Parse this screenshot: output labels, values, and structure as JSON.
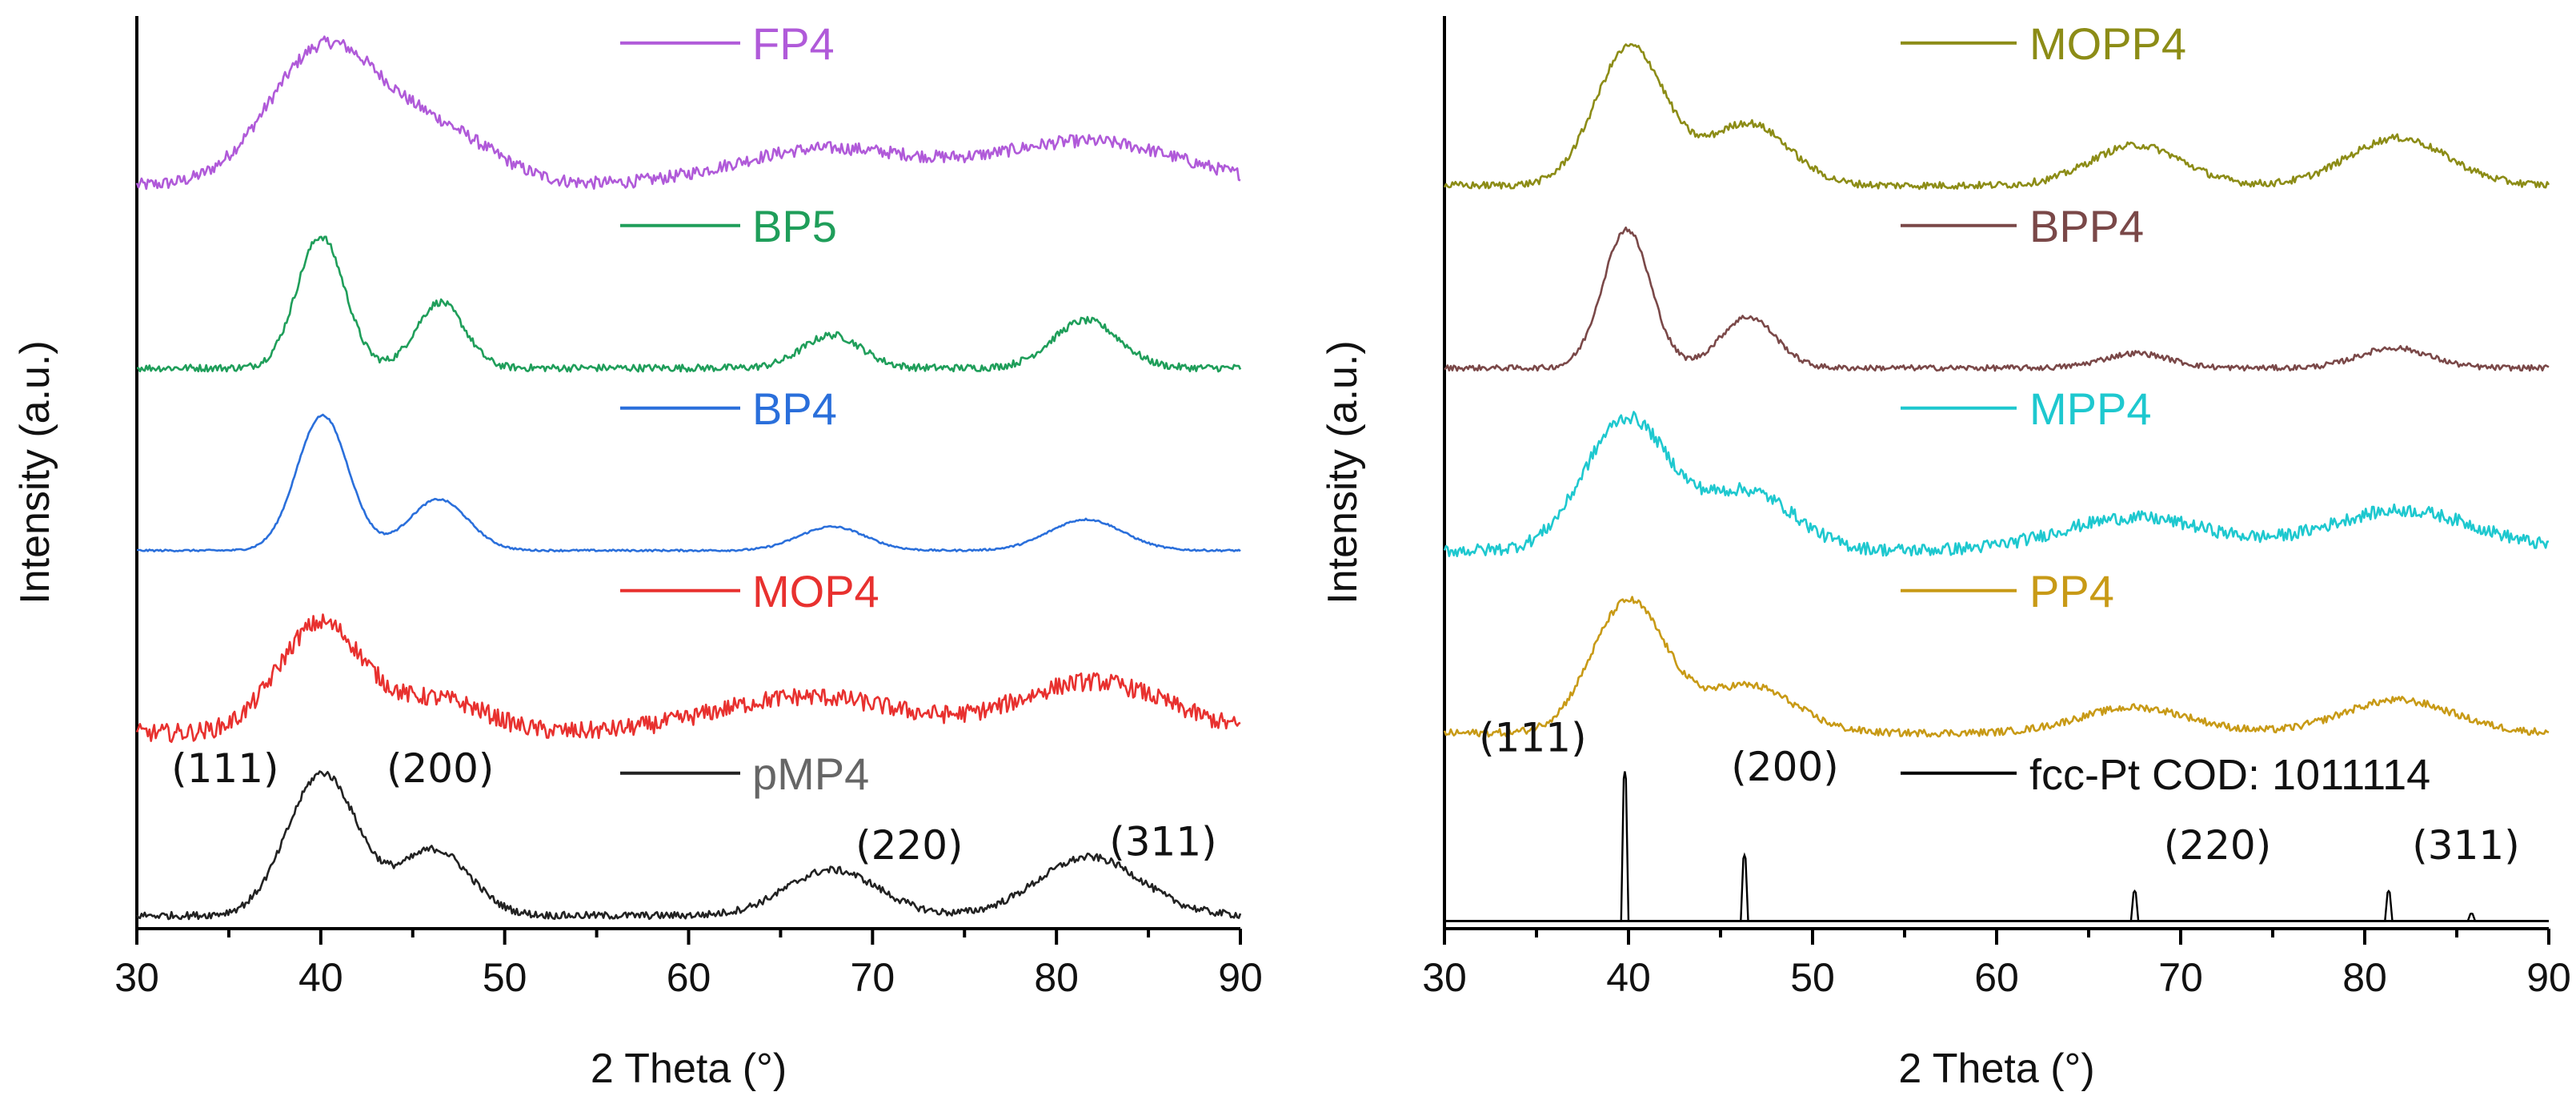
{
  "chart_data": [
    {
      "type": "line",
      "xlabel": "2 Theta (°)",
      "ylabel": "Intensity (a.u.)",
      "xlim": [
        30,
        90
      ],
      "xticks": [
        "30",
        "40",
        "50",
        "60",
        "70",
        "80",
        "90"
      ],
      "series": [
        {
          "name": "FP4",
          "color": "#b05ad9",
          "offset": 4.0,
          "noise": 0.035,
          "peaks": [
            [
              40.2,
              0.75,
              3.0
            ],
            [
              46.5,
              0.28,
              3.0
            ],
            [
              67.5,
              0.2,
              5.0
            ],
            [
              81.8,
              0.24,
              5.0
            ]
          ]
        },
        {
          "name": "BP5",
          "color": "#1f9e5a",
          "offset": 3.0,
          "noise": 0.02,
          "peaks": [
            [
              40.0,
              0.72,
              1.3
            ],
            [
              46.5,
              0.36,
              1.3
            ],
            [
              67.8,
              0.18,
              1.6
            ],
            [
              81.6,
              0.26,
              1.8
            ]
          ]
        },
        {
          "name": "BP4",
          "color": "#2a6fdb",
          "offset": 2.0,
          "noise": 0.005,
          "peaks": [
            [
              40.1,
              0.74,
              1.4
            ],
            [
              46.4,
              0.28,
              1.6
            ],
            [
              67.8,
              0.13,
              1.8
            ],
            [
              81.6,
              0.17,
              2.0
            ]
          ]
        },
        {
          "name": "MOP4",
          "color": "#e8312f",
          "offset": 1.0,
          "noise": 0.05,
          "peaks": [
            [
              40.0,
              0.6,
              2.3
            ],
            [
              46.5,
              0.18,
              2.5
            ],
            [
              66.5,
              0.2,
              5.0
            ],
            [
              82.0,
              0.28,
              4.0
            ]
          ]
        },
        {
          "name": "pMP4",
          "color": "#222222",
          "offset": 0.0,
          "noise": 0.02,
          "peaks": [
            [
              40.1,
              0.78,
              1.9
            ],
            [
              46.2,
              0.36,
              1.9
            ],
            [
              67.8,
              0.25,
              2.5
            ],
            [
              81.8,
              0.32,
              2.8
            ]
          ]
        }
      ],
      "peak_labels": [
        {
          "text": "(111)",
          "x": 34.8,
          "y": 0.78
        },
        {
          "text": "(200)",
          "x": 46.5,
          "y": 0.78
        },
        {
          "text": "(220)",
          "x": 72.0,
          "y": 0.36
        },
        {
          "text": "(311)",
          "x": 85.8,
          "y": 0.38
        }
      ]
    },
    {
      "type": "line",
      "xlabel": "2 Theta (°)",
      "ylabel": "Intensity (a.u.)",
      "xlim": [
        30,
        90
      ],
      "xticks": [
        "30",
        "40",
        "50",
        "60",
        "70",
        "80",
        "90"
      ],
      "series": [
        {
          "name": "MOPP4",
          "color": "#8c8c16",
          "offset": 4.0,
          "noise": 0.02,
          "peaks": [
            [
              40.1,
              0.76,
              1.9
            ],
            [
              46.5,
              0.34,
              2.2
            ],
            [
              67.6,
              0.22,
              2.5
            ],
            [
              81.8,
              0.26,
              2.7
            ]
          ]
        },
        {
          "name": "BPP4",
          "color": "#7a4848",
          "offset": 3.0,
          "noise": 0.015,
          "peaks": [
            [
              39.9,
              0.76,
              1.3
            ],
            [
              46.5,
              0.28,
              1.5
            ],
            [
              67.6,
              0.08,
              1.8
            ],
            [
              81.6,
              0.11,
              1.9
            ]
          ]
        },
        {
          "name": "MPP4",
          "color": "#1ec8cf",
          "offset": 2.0,
          "noise": 0.035,
          "peaks": [
            [
              39.9,
              0.72,
              2.3
            ],
            [
              46.5,
              0.32,
              2.5
            ],
            [
              67.5,
              0.18,
              4.0
            ],
            [
              82.0,
              0.22,
              4.0
            ]
          ]
        },
        {
          "name": "PP4",
          "color": "#c89a16",
          "offset": 1.0,
          "noise": 0.02,
          "peaks": [
            [
              40.0,
              0.72,
              2.0
            ],
            [
              46.5,
              0.26,
              2.5
            ],
            [
              67.5,
              0.14,
              3.0
            ],
            [
              81.8,
              0.18,
              3.0
            ]
          ]
        }
      ],
      "reference": {
        "name": "fcc-Pt COD: 1011114",
        "color": "#000000",
        "sticks": [
          [
            39.8,
            1.0
          ],
          [
            46.3,
            0.44
          ],
          [
            67.5,
            0.2
          ],
          [
            81.3,
            0.2
          ],
          [
            85.8,
            0.05
          ]
        ]
      },
      "peak_labels": [
        {
          "text": "(111)",
          "x": 34.8,
          "y": 0.95
        },
        {
          "text": "(200)",
          "x": 48.5,
          "y": 0.79
        },
        {
          "text": "(220)",
          "x": 72.0,
          "y": 0.36
        },
        {
          "text": "(311)",
          "x": 85.5,
          "y": 0.36
        }
      ]
    }
  ]
}
